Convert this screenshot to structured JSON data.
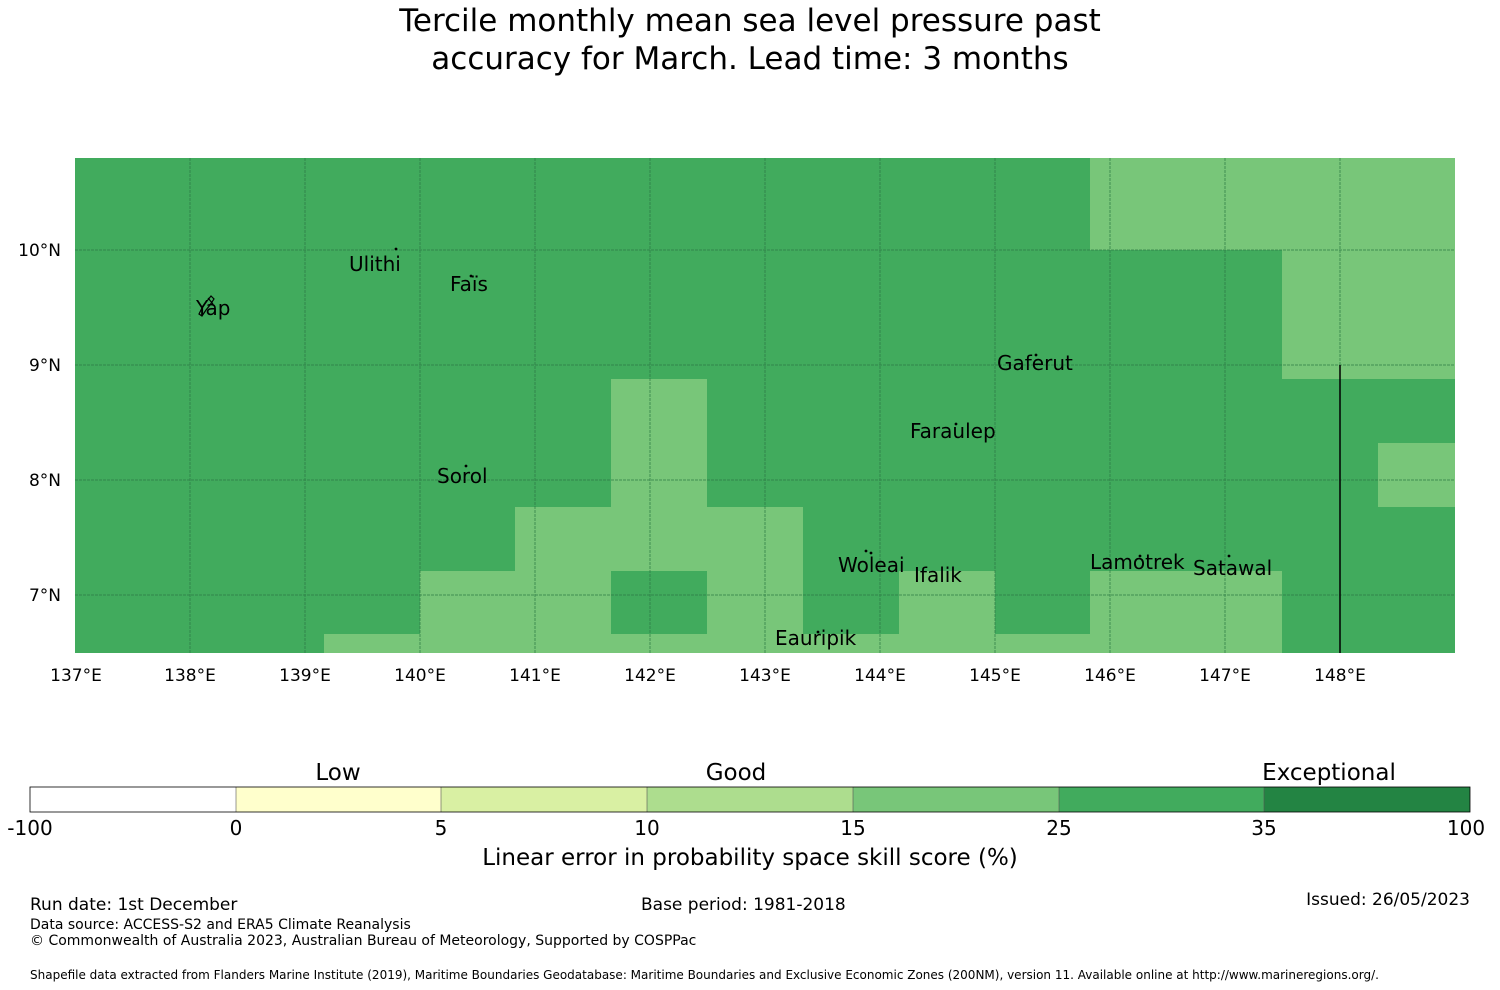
{
  "title_line1": "Tercile monthly mean sea level pressure past",
  "title_line2": "accuracy for March. Lead time: 3 months",
  "map": {
    "lon_ticks": [
      "137°E",
      "138°E",
      "139°E",
      "140°E",
      "141°E",
      "142°E",
      "143°E",
      "144°E",
      "145°E",
      "146°E",
      "147°E",
      "148°E"
    ],
    "lat_ticks": [
      "10°N",
      "9°N",
      "8°N",
      "7°N"
    ],
    "colors": {
      "band_25_35": "#41ab5d",
      "band_15_25": "#78c679"
    },
    "places": [
      "Ulithi",
      "Faïs",
      "Yap",
      "Gaferut",
      "Faraulep",
      "Sorol",
      "Woleai",
      "Ifalik",
      "Lamotrek",
      "Satawal",
      "Eauripik"
    ]
  },
  "colorbar": {
    "categories": [
      "Low",
      "Good",
      "Exceptional"
    ],
    "bounds": [
      "-100",
      "0",
      "5",
      "10",
      "15",
      "25",
      "35",
      "100"
    ],
    "colors": [
      "#ffffff",
      "#ffffcc",
      "#d9f0a3",
      "#addd8e",
      "#78c679",
      "#41ab5d",
      "#238443"
    ],
    "label": "Linear error in probability space skill score (%)"
  },
  "footer": {
    "run_date": "Run date: 1st December",
    "base_period": "Base period: 1981-2018",
    "issued": "Issued: 26/05/2023",
    "data_source": "Data source: ACCESS-S2 and ERA5 Climate Reanalysis",
    "copyright": "© Commonwealth of Australia 2023, Australian Bureau of Meteorology, Supported by COSPPac",
    "shapefile": "Shapefile data extracted from Flanders Marine Institute (2019), Maritime Boundaries Geodatabase: Maritime Boundaries and Exclusive Economic Zones (200NM), version 11. Available online at http://www.marineregions.org/."
  }
}
